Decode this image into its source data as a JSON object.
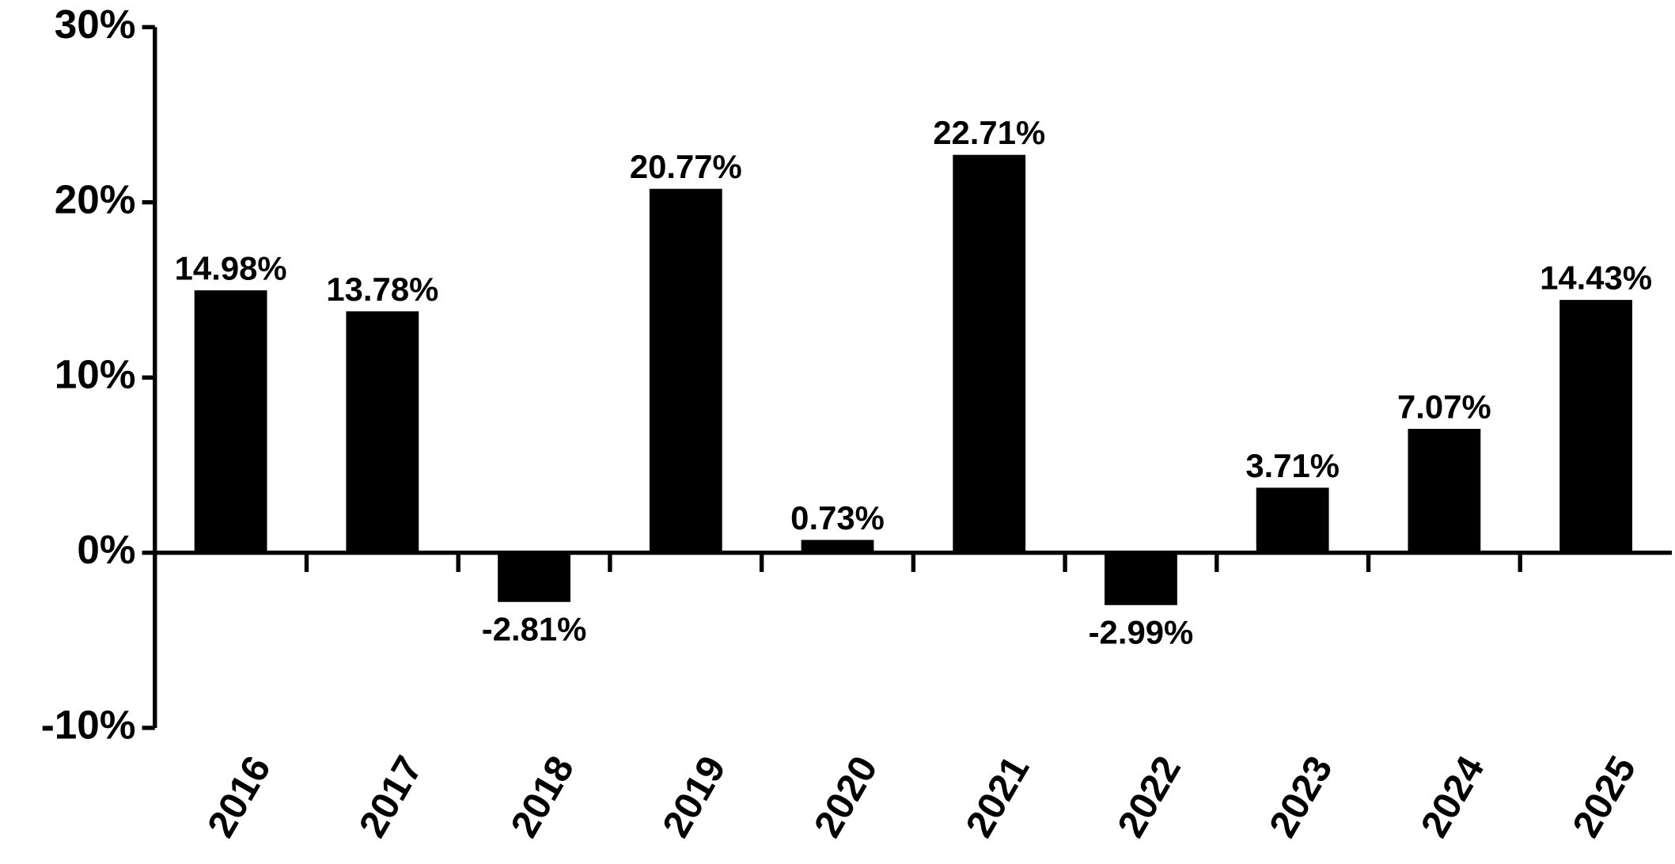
{
  "chart_data": {
    "type": "bar",
    "categories": [
      "2016",
      "2017",
      "2018",
      "2019",
      "2020",
      "2021",
      "2022",
      "2023",
      "2024",
      "2025"
    ],
    "values": [
      14.98,
      13.78,
      -2.81,
      20.77,
      0.73,
      22.71,
      -2.99,
      3.71,
      7.07,
      14.43
    ],
    "value_labels": [
      "14.98%",
      "13.78%",
      "-2.81%",
      "20.77%",
      "0.73%",
      "22.71%",
      "-2.99%",
      "3.71%",
      "7.07%",
      "14.43%"
    ],
    "color": "#000000",
    "ylim": [
      -10,
      30
    ],
    "yticks": [
      {
        "value": -10,
        "label": "-10%"
      },
      {
        "value": 0,
        "label": "0%"
      },
      {
        "value": 10,
        "label": "10%"
      },
      {
        "value": 20,
        "label": "20%"
      },
      {
        "value": 30,
        "label": "30%"
      }
    ],
    "grid": false
  }
}
